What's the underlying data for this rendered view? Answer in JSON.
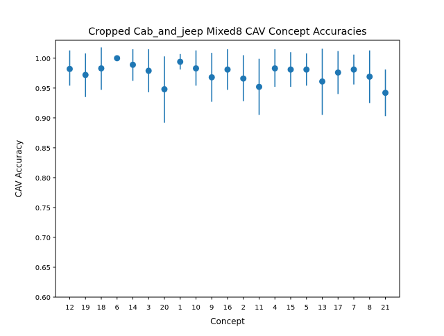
{
  "chart_data": {
    "type": "scatter",
    "title": "Cropped Cab_and_jeep Mixed8 CAV Concept Accuracies",
    "xlabel": "Concept",
    "ylabel": "CAV Accuracy",
    "categories": [
      "12",
      "19",
      "18",
      "6",
      "14",
      "3",
      "20",
      "1",
      "10",
      "9",
      "16",
      "2",
      "11",
      "4",
      "15",
      "5",
      "13",
      "17",
      "7",
      "8",
      "21"
    ],
    "values": [
      0.982,
      0.972,
      0.983,
      1.0,
      0.989,
      0.979,
      0.948,
      0.994,
      0.983,
      0.968,
      0.981,
      0.966,
      0.952,
      0.983,
      0.981,
      0.981,
      0.961,
      0.976,
      0.981,
      0.969,
      0.942
    ],
    "error_low": [
      0.954,
      0.935,
      0.947,
      1.0,
      0.962,
      0.943,
      0.892,
      0.981,
      0.954,
      0.927,
      0.947,
      0.928,
      0.905,
      0.952,
      0.952,
      0.954,
      0.905,
      0.94,
      0.956,
      0.925,
      0.903
    ],
    "error_high": [
      1.013,
      1.008,
      1.018,
      1.0,
      1.015,
      1.015,
      1.003,
      1.007,
      1.013,
      1.009,
      1.015,
      1.005,
      0.999,
      1.015,
      1.01,
      1.008,
      1.016,
      1.012,
      1.006,
      1.013,
      0.981
    ],
    "ylim": [
      0.6,
      1.03
    ],
    "yticks": [
      "0.60",
      "0.65",
      "0.70",
      "0.75",
      "0.80",
      "0.85",
      "0.90",
      "0.95",
      "1.00"
    ],
    "grid": false,
    "colors": {
      "marker": "#1f77b4",
      "error_bar": "#1f77b4",
      "axes": "#000000"
    }
  }
}
